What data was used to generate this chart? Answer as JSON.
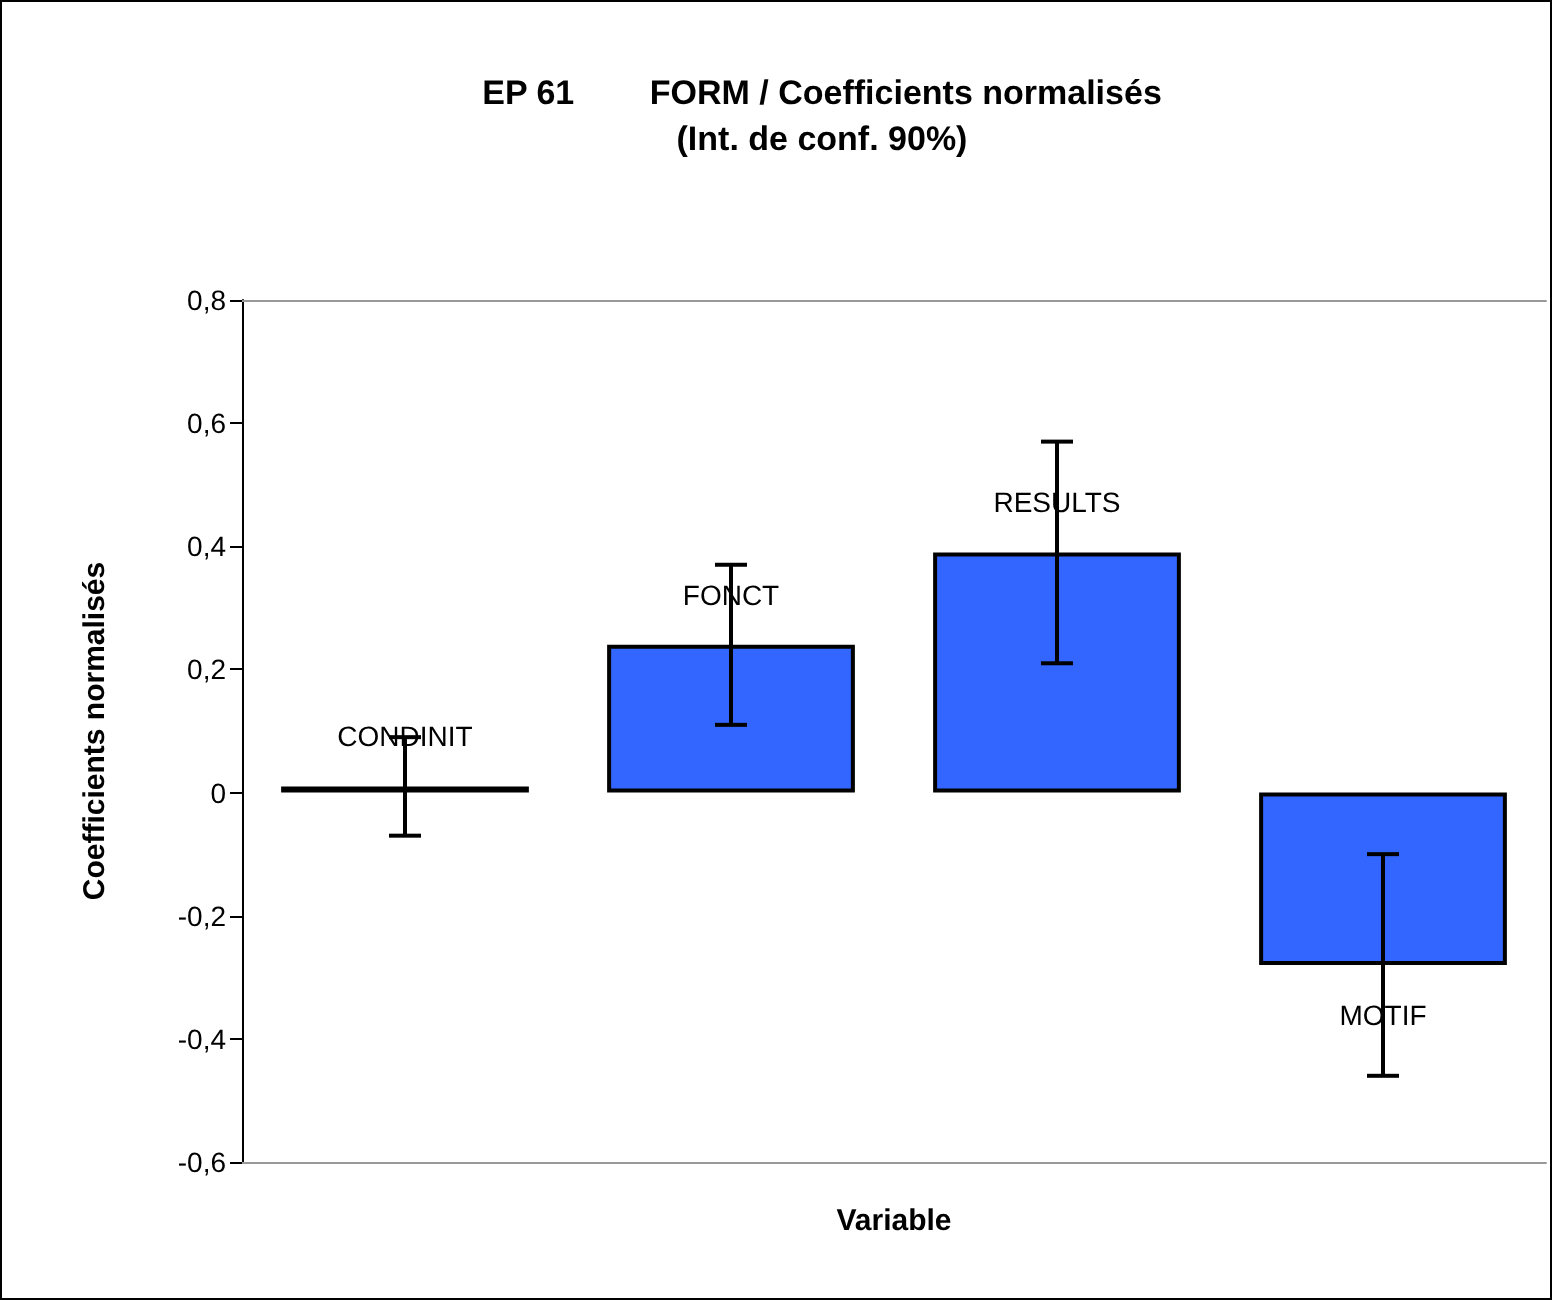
{
  "chart_data": {
    "type": "bar",
    "title": "EP 61        FORM / Coefficients normalisés",
    "subtitle": "(Int. de conf. 90%)",
    "xlabel": "Variable",
    "ylabel": "Coefficients normalisés",
    "categories": [
      null,
      null,
      null,
      null
    ],
    "values": [
      0.01,
      0.24,
      0.39,
      -0.28
    ],
    "value_labels": [
      "CONDINIT",
      "FONCT",
      "RESULTS",
      "MOTIF"
    ],
    "errors": [
      0.08,
      0.13,
      0.18,
      0.18
    ],
    "color": "#3366ff",
    "ylim": [
      -0.6,
      0.8
    ],
    "yticks": [
      {
        "value": -0.6,
        "label": "-0,6"
      },
      {
        "value": -0.4,
        "label": "-0,4"
      },
      {
        "value": -0.2,
        "label": "-0,2"
      },
      0,
      {
        "value": 0.2,
        "label": "0,2"
      },
      {
        "value": 0.4,
        "label": "0,4"
      },
      {
        "value": 0.6,
        "label": "0,6"
      },
      {
        "value": 0.8,
        "label": "0,8"
      }
    ],
    "tick_labels": "y",
    "grid": false
  }
}
